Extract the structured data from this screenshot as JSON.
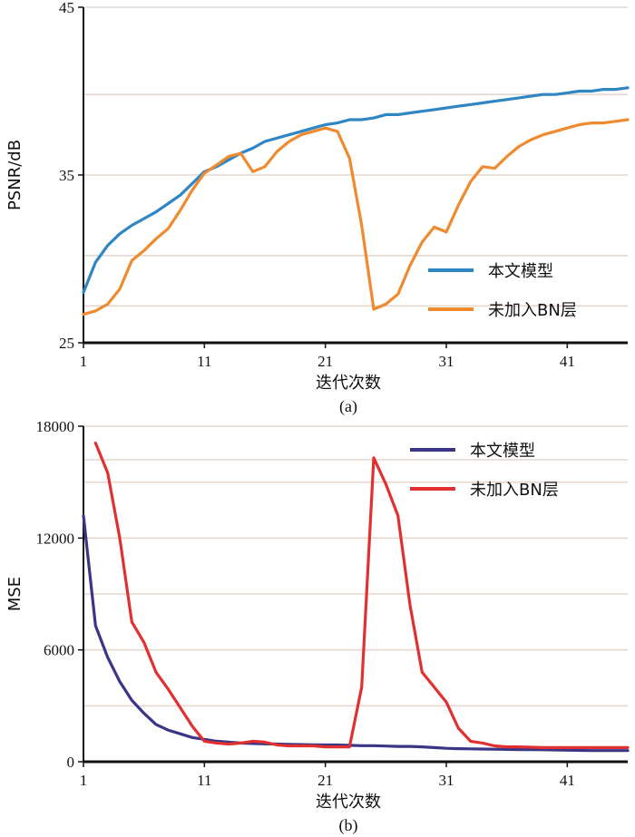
{
  "chart_data": [
    {
      "type": "line",
      "caption": "(a)",
      "xlabel": "迭代次数",
      "ylabel": "PSNR/dB",
      "xlim": [
        1,
        46
      ],
      "ylim": [
        25,
        45
      ],
      "xticks": [
        1,
        11,
        21,
        31,
        41
      ],
      "yticks": [
        25,
        35,
        45
      ],
      "grid": "horizontal",
      "legend_position": "bottom-right",
      "series": [
        {
          "name": "本文模型",
          "color": "#2f86c3",
          "x": [
            1,
            2,
            3,
            4,
            5,
            6,
            7,
            8,
            9,
            10,
            11,
            12,
            13,
            14,
            15,
            16,
            17,
            18,
            19,
            20,
            21,
            22,
            23,
            24,
            25,
            26,
            27,
            28,
            29,
            30,
            31,
            32,
            33,
            34,
            35,
            36,
            37,
            38,
            39,
            40,
            41,
            42,
            43,
            44,
            45,
            46
          ],
          "y": [
            28.0,
            29.8,
            30.8,
            31.5,
            32.0,
            32.4,
            32.8,
            33.3,
            33.8,
            34.5,
            35.2,
            35.5,
            35.9,
            36.3,
            36.6,
            37.0,
            37.2,
            37.4,
            37.6,
            37.8,
            38.0,
            38.1,
            38.3,
            38.3,
            38.4,
            38.6,
            38.6,
            38.7,
            38.8,
            38.9,
            39.0,
            39.1,
            39.2,
            39.3,
            39.4,
            39.5,
            39.6,
            39.7,
            39.8,
            39.8,
            39.9,
            40.0,
            40.0,
            40.1,
            40.1,
            40.2
          ]
        },
        {
          "name": "未加入BN层",
          "color": "#f08a2e",
          "x": [
            1,
            2,
            3,
            4,
            5,
            6,
            7,
            8,
            9,
            10,
            11,
            12,
            13,
            14,
            15,
            16,
            17,
            18,
            19,
            20,
            21,
            22,
            23,
            24,
            25,
            26,
            27,
            28,
            29,
            30,
            31,
            32,
            33,
            34,
            35,
            36,
            37,
            38,
            39,
            40,
            41,
            42,
            43,
            44,
            45,
            46
          ],
          "y": [
            26.7,
            26.9,
            27.3,
            28.2,
            29.9,
            30.5,
            31.2,
            31.8,
            32.9,
            34.1,
            35.1,
            35.6,
            36.1,
            36.3,
            35.2,
            35.5,
            36.4,
            37.0,
            37.4,
            37.6,
            37.8,
            37.6,
            36.0,
            32.0,
            27.0,
            27.3,
            27.9,
            29.6,
            31.0,
            31.9,
            31.6,
            33.2,
            34.6,
            35.5,
            35.4,
            36.1,
            36.7,
            37.1,
            37.4,
            37.6,
            37.8,
            38.0,
            38.1,
            38.1,
            38.2,
            38.3
          ]
        }
      ]
    },
    {
      "type": "line",
      "caption": "(b)",
      "xlabel": "迭代次数",
      "ylabel": "MSE",
      "xlim": [
        1,
        46
      ],
      "ylim": [
        0,
        18000
      ],
      "xticks": [
        1,
        11,
        21,
        31,
        41
      ],
      "yticks": [
        0,
        6000,
        12000,
        18000
      ],
      "grid": "horizontal",
      "legend_position": "top-right",
      "series": [
        {
          "name": "本文模型",
          "color": "#3a3585",
          "x": [
            1,
            2,
            3,
            4,
            5,
            6,
            7,
            8,
            9,
            10,
            11,
            12,
            13,
            14,
            15,
            16,
            17,
            18,
            19,
            20,
            21,
            22,
            23,
            24,
            25,
            26,
            27,
            28,
            29,
            30,
            31,
            32,
            33,
            34,
            35,
            36,
            37,
            38,
            39,
            40,
            41,
            42,
            43,
            44,
            45,
            46
          ],
          "y": [
            13200,
            7300,
            5600,
            4300,
            3300,
            2600,
            2000,
            1700,
            1500,
            1300,
            1200,
            1100,
            1050,
            1000,
            980,
            960,
            950,
            930,
            920,
            910,
            900,
            900,
            880,
            860,
            860,
            840,
            820,
            820,
            800,
            760,
            720,
            700,
            690,
            680,
            670,
            660,
            650,
            650,
            640,
            630,
            620,
            610,
            600,
            600,
            600,
            600
          ]
        },
        {
          "name": "未加入BN层",
          "color": "#e03030",
          "x": [
            1,
            2,
            3,
            4,
            5,
            6,
            7,
            8,
            9,
            10,
            11,
            12,
            13,
            14,
            15,
            16,
            17,
            18,
            19,
            20,
            21,
            22,
            23,
            24,
            25,
            26,
            27,
            28,
            29,
            30,
            31,
            32,
            33,
            34,
            35,
            36,
            37,
            38,
            39,
            40,
            41,
            42,
            43,
            44,
            45,
            46
          ],
          "y": [
            null,
            17100,
            15500,
            12000,
            7500,
            6400,
            4800,
            3900,
            2900,
            1900,
            1100,
            1000,
            950,
            1000,
            1100,
            1050,
            900,
            850,
            850,
            850,
            800,
            800,
            800,
            4000,
            16300,
            14900,
            13200,
            8400,
            4800,
            4000,
            3200,
            1800,
            1100,
            1000,
            850,
            800,
            800,
            780,
            760,
            760,
            760,
            760,
            760,
            760,
            760,
            760
          ]
        }
      ]
    }
  ]
}
